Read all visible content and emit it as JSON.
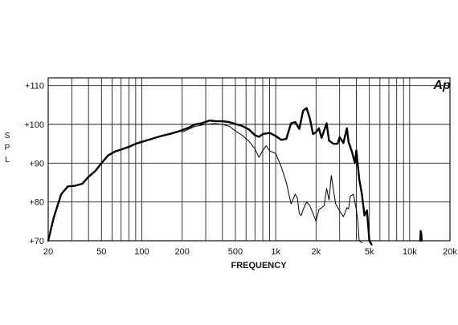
{
  "chart_data": {
    "type": "line",
    "xscale": "log",
    "xlabel": "FREQUENCY",
    "ylabel": "SPL",
    "xlim": [
      20,
      20000
    ],
    "ylim": [
      70,
      112
    ],
    "grid": true,
    "logo_text": "Ap",
    "x_ticks": [
      {
        "value": 20,
        "label": "20"
      },
      {
        "value": 50,
        "label": "50"
      },
      {
        "value": 100,
        "label": "100"
      },
      {
        "value": 200,
        "label": "200"
      },
      {
        "value": 500,
        "label": "500"
      },
      {
        "value": 1000,
        "label": "1k"
      },
      {
        "value": 2000,
        "label": "2k"
      },
      {
        "value": 5000,
        "label": "5k"
      },
      {
        "value": 10000,
        "label": "10k"
      },
      {
        "value": 20000,
        "label": "20k"
      }
    ],
    "y_ticks": [
      {
        "value": 70,
        "label": "+70"
      },
      {
        "value": 80,
        "label": "+80"
      },
      {
        "value": 90,
        "label": "+90"
      },
      {
        "value": 100,
        "label": "+100"
      },
      {
        "value": 110,
        "label": "+110"
      }
    ],
    "series": [
      {
        "style": "thick",
        "x": [
          20,
          22,
          25,
          28,
          32,
          36,
          40,
          45,
          50,
          56,
          63,
          70,
          80,
          90,
          100,
          112,
          125,
          140,
          160,
          180,
          200,
          225,
          250,
          280,
          320,
          360,
          400,
          450,
          500,
          560,
          630,
          700,
          750,
          800,
          900,
          1000,
          1100,
          1200,
          1300,
          1400,
          1500,
          1600,
          1700,
          1800,
          1900,
          2000,
          2100,
          2200,
          2400,
          2500,
          2700,
          2900,
          3000,
          3200,
          3400,
          3500,
          3700,
          3900,
          4000,
          4200,
          4400,
          4600,
          4800,
          5000,
          5200
        ],
        "y": [
          70,
          76,
          82,
          84,
          84.2,
          84.7,
          86.5,
          88,
          90,
          92,
          93,
          93.5,
          94.2,
          95,
          95.5,
          96,
          96.5,
          97,
          97.5,
          98,
          98.5,
          99.2,
          100,
          100.3,
          101,
          100.8,
          100.8,
          100.6,
          100.1,
          99.6,
          98.7,
          97.2,
          96.8,
          97.5,
          97.8,
          97,
          96,
          96.3,
          100.3,
          100.6,
          98.8,
          103.5,
          104.2,
          101.5,
          97.5,
          98,
          99,
          96.5,
          100.3,
          95.8,
          95,
          95,
          96.7,
          95.2,
          99,
          95.5,
          93,
          90,
          93.3,
          86,
          82,
          76.5,
          77.8,
          70,
          69
        ]
      },
      {
        "style": "thin",
        "x": [
          200,
          250,
          300,
          350,
          400,
          450,
          500,
          560,
          630,
          700,
          750,
          800,
          850,
          900,
          1000,
          1100,
          1200,
          1300,
          1400,
          1450,
          1500,
          1550,
          1600,
          1700,
          1800,
          1900,
          2000,
          2100,
          2200,
          2300,
          2400,
          2500,
          2600,
          2800,
          3000,
          3200,
          3400,
          3500,
          3600,
          3800,
          3900,
          4000,
          4100,
          4200,
          4400
        ],
        "y": [
          98,
          99.5,
          100,
          100.2,
          100,
          99.5,
          98.3,
          97.2,
          95.7,
          93.7,
          91.5,
          93.3,
          94.5,
          93.2,
          92.5,
          89,
          85,
          79.5,
          82,
          81,
          77,
          76.5,
          78,
          80,
          79,
          77,
          75,
          78,
          78.5,
          79,
          83.5,
          80.5,
          86.8,
          79.5,
          77.7,
          76.2,
          78.5,
          78.2,
          81.5,
          82,
          80,
          78,
          75,
          70,
          69.5
        ]
      },
      {
        "style": "thick",
        "x": [
          12000,
          12100,
          12150,
          12200,
          12300
        ],
        "y": [
          70,
          72.5,
          70.5,
          72,
          70
        ]
      }
    ]
  }
}
